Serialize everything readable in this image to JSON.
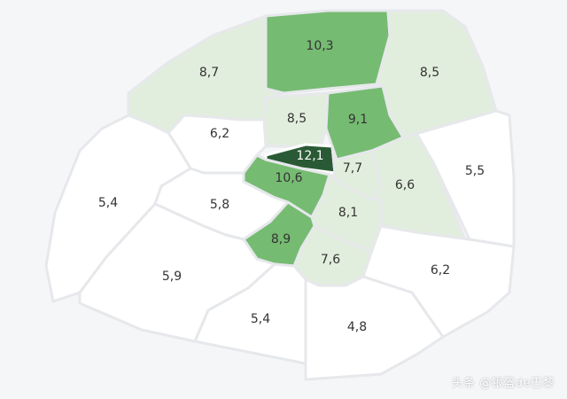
{
  "map": {
    "scale_colors": {
      "none": "#ffffff",
      "light": "#e2eedd",
      "mid": "#a3d09b",
      "strong": "#76bb72",
      "darkest": "#2a5a35"
    },
    "districts": [
      {
        "id": "north-center",
        "value": "10,3",
        "level": "strong"
      },
      {
        "id": "north-west",
        "value": "8,7",
        "level": "light"
      },
      {
        "id": "north-east",
        "value": "8,5",
        "level": "light"
      },
      {
        "id": "center-north-left",
        "value": "8,5",
        "level": "light"
      },
      {
        "id": "center-north-right",
        "value": "9,1",
        "level": "strong"
      },
      {
        "id": "center-top",
        "value": "12,1",
        "level": "darkest"
      },
      {
        "id": "west-upper",
        "value": "6,2",
        "level": "none"
      },
      {
        "id": "center-left",
        "value": "10,6",
        "level": "strong"
      },
      {
        "id": "center-mid",
        "value": "7,7",
        "level": "light"
      },
      {
        "id": "east-inner",
        "value": "6,6",
        "level": "light"
      },
      {
        "id": "east",
        "value": "5,5",
        "level": "none"
      },
      {
        "id": "far-west",
        "value": "5,4",
        "level": "none"
      },
      {
        "id": "west-mid",
        "value": "5,8",
        "level": "none"
      },
      {
        "id": "center-lower-right",
        "value": "8,1",
        "level": "light"
      },
      {
        "id": "center-lower-left",
        "value": "8,9",
        "level": "strong"
      },
      {
        "id": "south-center",
        "value": "7,6",
        "level": "light"
      },
      {
        "id": "south-east",
        "value": "6,2",
        "level": "none"
      },
      {
        "id": "south-west",
        "value": "5,9",
        "level": "none"
      },
      {
        "id": "south",
        "value": "5,4",
        "level": "none"
      },
      {
        "id": "far-south",
        "value": "4,8",
        "level": "none"
      }
    ]
  },
  "watermark": "头条 @银盔de巴黎"
}
